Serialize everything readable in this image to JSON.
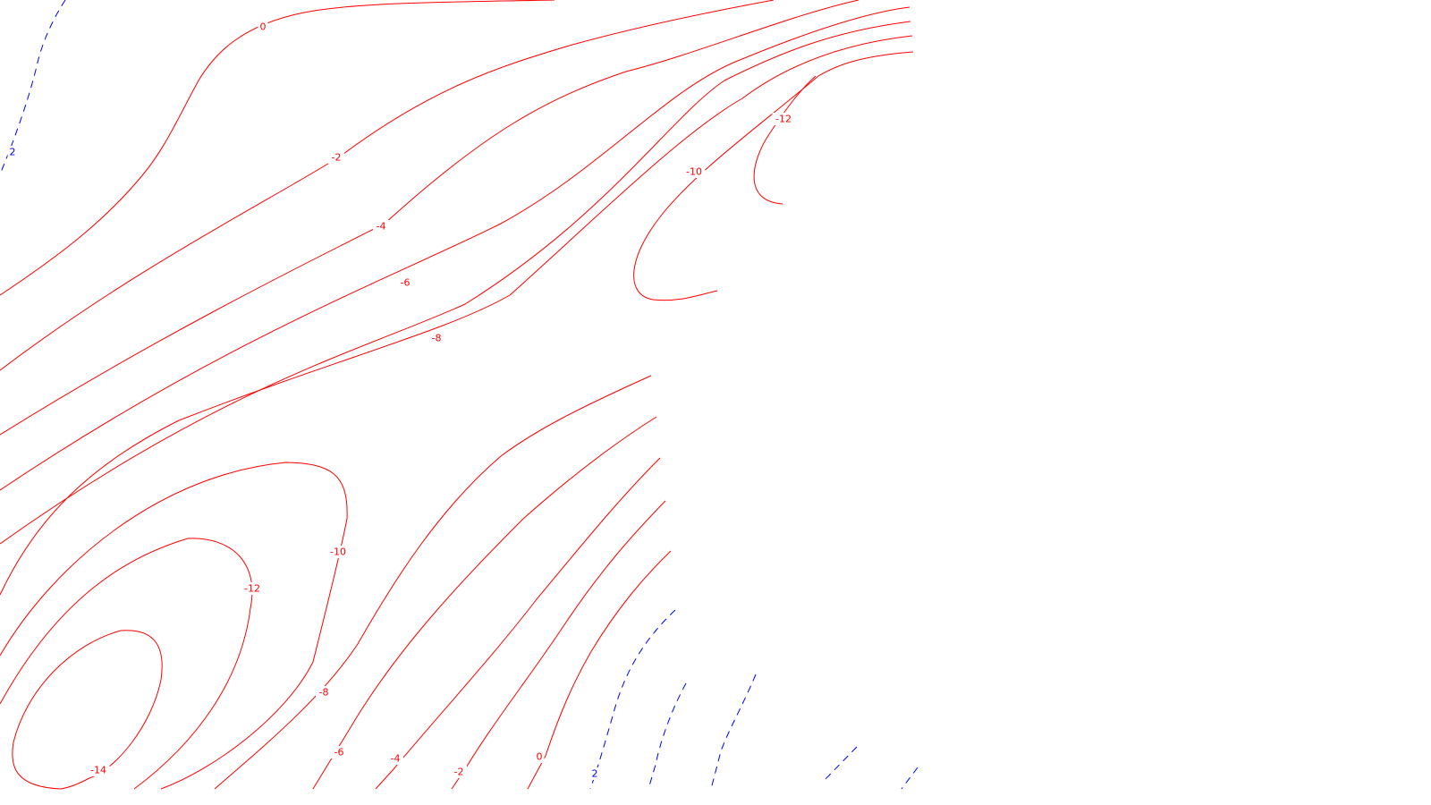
{
  "chart_data": {
    "type": "contour",
    "title": "",
    "xlabel": "",
    "ylabel": "",
    "colors": {
      "negative": "#ff0000",
      "positive": "#0000ff",
      "background": "#ffffff"
    },
    "negative_style": "solid",
    "positive_style": "dashed",
    "levels": [
      {
        "value": 2,
        "label": "2"
      },
      {
        "value": 0,
        "label": "0"
      },
      {
        "value": -2,
        "label": "-2"
      },
      {
        "value": -4,
        "label": "-4"
      },
      {
        "value": -6,
        "label": "-6"
      },
      {
        "value": -8,
        "label": "-8"
      },
      {
        "value": -10,
        "label": "-10"
      },
      {
        "value": -12,
        "label": "-12"
      },
      {
        "value": -14,
        "label": "-14"
      }
    ]
  }
}
